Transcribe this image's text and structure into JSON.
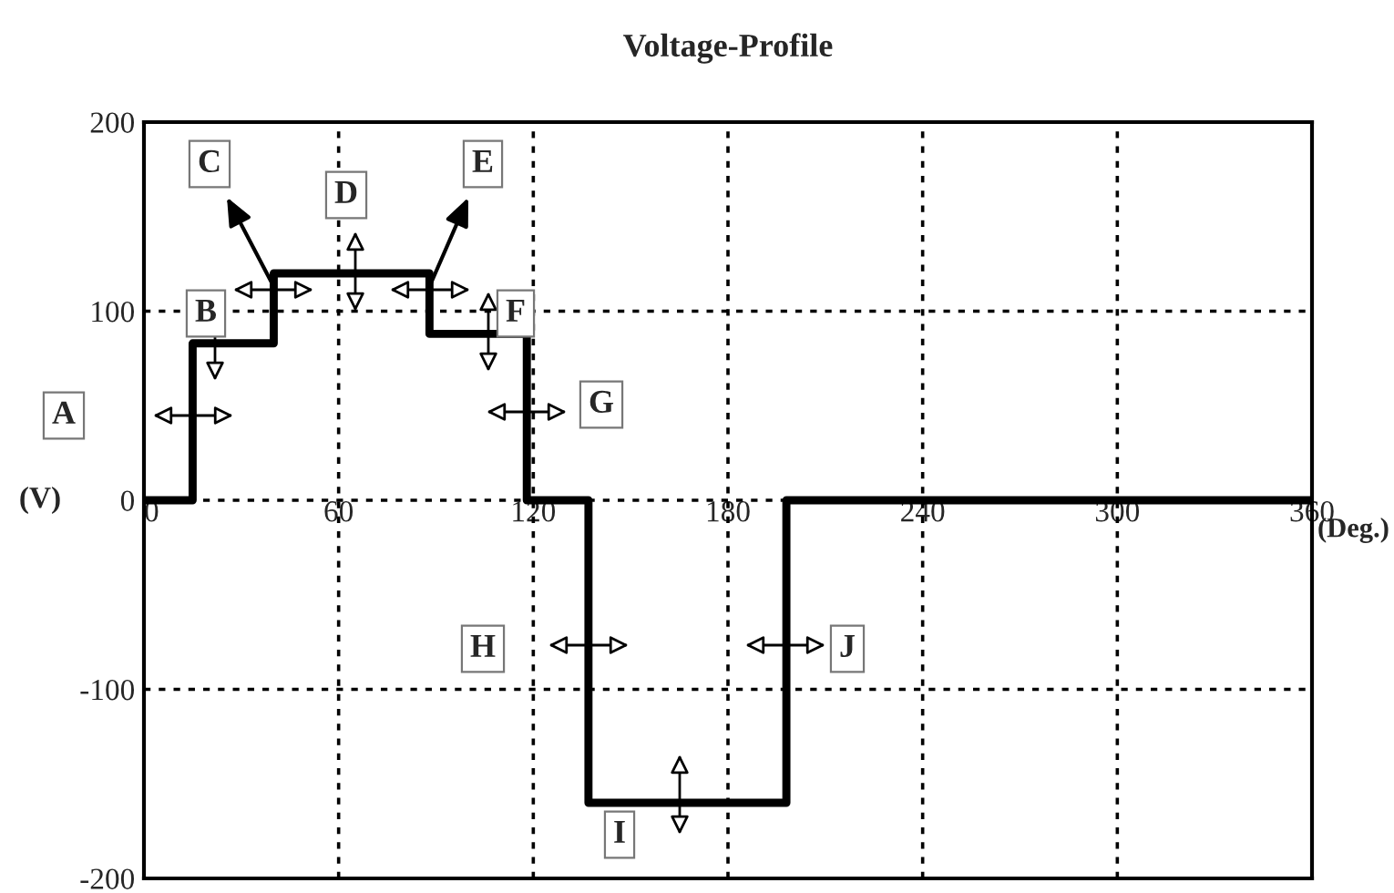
{
  "chart_data": {
    "type": "step",
    "title": "Voltage-Profile",
    "xlabel": "(Deg.)",
    "ylabel": "(V)",
    "x": [
      0,
      15,
      40,
      88,
      118,
      137,
      198,
      360
    ],
    "series": [
      {
        "color": "#000000",
        "values": [
          0,
          83,
          120,
          88,
          0,
          -160,
          0,
          0
        ]
      }
    ],
    "xlim": [
      0,
      360
    ],
    "xticks": [
      0,
      60,
      120,
      180,
      240,
      300,
      360
    ],
    "ylim": [
      -200,
      200
    ],
    "yticks": [
      -200,
      -100,
      0,
      100,
      200
    ],
    "grid": true,
    "line_style": "solid",
    "marker": "none",
    "legend": false,
    "annotations": [
      "A",
      "B",
      {
        "text": "C",
        "x": 40,
        "y": 113
      },
      "D",
      {
        "text": "E",
        "x": 88,
        "y": 113
      },
      "F",
      "G",
      "H",
      "I",
      "J"
    ]
  }
}
